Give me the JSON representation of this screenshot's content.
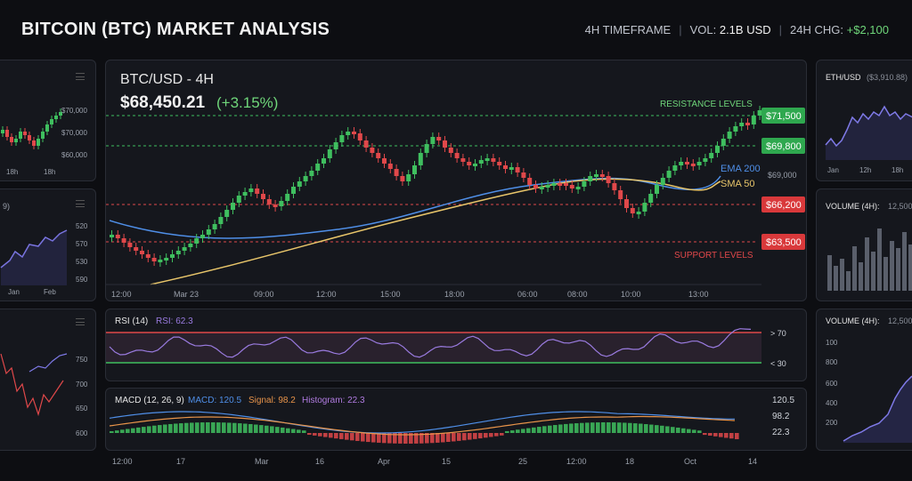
{
  "header": {
    "title": "BITCOIN (BTC) MARKET ANALYSIS",
    "timeframe": "4H TIMEFRAME",
    "vol_label": "VOL:",
    "vol_value": "2.1B USD",
    "chg_label": "24H CHG:",
    "chg_value": "+$2,100"
  },
  "main_chart": {
    "pair": "BTC/USD - 4H",
    "price": "$68,450.21",
    "change": "(+3.15%)",
    "resistance_label": "RESISTANCE LEVELS",
    "support_label": "SUPPORT LEVELS",
    "ema_label": "EMA 200",
    "sma_label": "SMA 50",
    "level_71500": "$71,500",
    "level_69800": "$69,800",
    "level_69000": "$69,000",
    "level_66200": "$66,200",
    "level_63500": "$63,500",
    "x_ticks": [
      "12:00",
      "Mar 23",
      "09:00",
      "12:00",
      "15:00",
      "18:00",
      "06:00",
      "08:00",
      "10:00",
      "13:00"
    ]
  },
  "rsi": {
    "label": "RSI (14)",
    "value_label": "RSI: 62.3",
    "upper": "> 70",
    "lower": "< 30"
  },
  "macd": {
    "label": "MACD (12, 26, 9)",
    "macd_label": "MACD: 120.5",
    "signal_label": "Signal: 98.2",
    "hist_label": "Histogram: 22.3",
    "axis": [
      "120.5",
      "98.2",
      "22.3"
    ]
  },
  "bottom_axis": [
    "12:00",
    "17",
    "Mar",
    "16",
    "Apr",
    "15",
    "25",
    "12:00",
    "18",
    "Oct",
    "14"
  ],
  "left_panels": {
    "p1_ticks": [
      "$70,000",
      "$70,000",
      "$60,000"
    ],
    "p1_x": [
      "18h",
      "18h"
    ],
    "p2_title": "9)",
    "p2_ticks": [
      "520",
      "570",
      "530",
      "590"
    ],
    "p2_x": [
      "Jan",
      "Feb"
    ],
    "p3_ticks": [
      "750",
      "700",
      "650",
      "600"
    ]
  },
  "right_panels": {
    "eth_title": "ETH/USD",
    "eth_price": "($3,910.88)",
    "eth_x": [
      "Jan",
      "12h",
      "18h"
    ],
    "vol1_title": "VOLUME (4H):",
    "vol1_val": "12,500",
    "vol2_title": "VOLUME (4H):",
    "vol2_val": "12,500",
    "vol2_ticks": [
      "100",
      "800",
      "600",
      "400",
      "200"
    ]
  },
  "colors": {
    "green": "#3fbf5f",
    "red": "#e0484a",
    "ema": "#4f8fe8",
    "sma": "#e8c56a",
    "rsi": "#9a7be0",
    "accent_text": "#6fd67a"
  }
}
